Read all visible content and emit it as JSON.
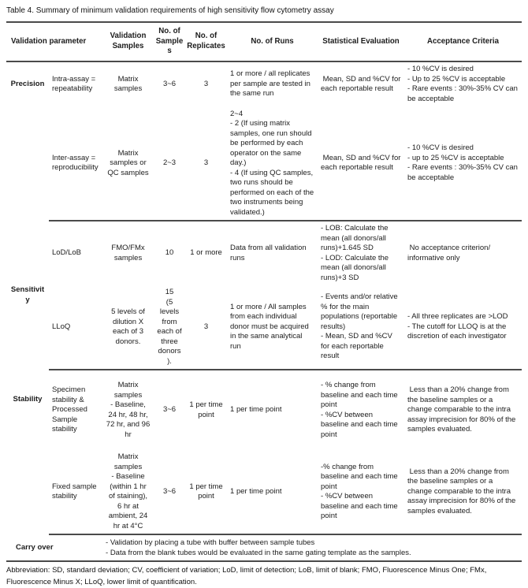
{
  "title": "Table 4. Summary of minimum validation requirements of high sensitivity flow cytometry assay",
  "header": {
    "validation_parameter": "Validation parameter",
    "validation_samples": "Validation Samples",
    "no_of_samples": "No. of Samples",
    "no_of_replicates": "No. of Replicates",
    "no_of_runs": "No. of Runs",
    "statistical_evaluation": "Statistical Evaluation",
    "acceptance_criteria": "Acceptance Criteria"
  },
  "sections": [
    {
      "category": "Precision",
      "rows": [
        {
          "parameter": "Intra-assay = repeatability",
          "samples": "Matrix samples",
          "n_samples": "3~6",
          "n_replicates": "3",
          "runs": "1 or more / all replicates per sample are tested in the same run",
          "statistical": " Mean, SD and %CV for each reportable result",
          "acceptance": "- 10 %CV is desired\n- Up to 25 %CV is acceptable\n- Rare events : 30%-35% CV can be acceptable"
        },
        {
          "parameter": "Inter-assay = reproducibility",
          "samples": "Matrix samples or QC samples",
          "n_samples": "2~3",
          "n_replicates": "3",
          "runs": "2~4\n- 2 (If using matrix samples, one run should be performed by each operator on the same day.)\n- 4 (If using QC samples, two runs should be performed on each of the two instruments being validated.)",
          "statistical": " Mean, SD and %CV for each reportable result",
          "acceptance": "- 10 %CV is desired\n- up to 25 %CV is acceptable\n- Rare events : 30%-35% CV can be acceptable"
        }
      ]
    },
    {
      "category": "Sensitivity",
      "rows": [
        {
          "parameter": "LoD/LoB",
          "samples": "FMO/FMx samples",
          "n_samples": "10",
          "n_replicates": "1 or more",
          "runs": "Data from all validation runs",
          "statistical": "- LOB: Calculate the mean (all donors/all runs)+1.645 SD\n- LOD: Calculate the mean (all donors/all runs)+3 SD",
          "acceptance": " No acceptance criterion/ informative only"
        },
        {
          "parameter": "LLoQ",
          "samples": "5 levels of dilution X each of 3 donors.",
          "n_samples": "15\n(5 levels from each of three donors).",
          "n_replicates": "3",
          "runs": "1 or more /  All samples from each individual donor must be acquired in the same analytical run",
          "statistical": "- Events and/or relative % for the main populations (reportable results)\n- Mean, SD and %CV for each reportable result",
          "acceptance": "- All three replicates are >LOD\n- The cutoff for LLOQ is at the discretion of each investigator"
        }
      ]
    },
    {
      "category": "Stability",
      "rows": [
        {
          "parameter": "Specimen stability & Processed Sample stability",
          "samples": "Matrix samples\n- Baseline, 24 hr, 48 hr, 72 hr, and 96 hr",
          "n_samples": "3~6",
          "n_replicates": "1 per time point",
          "runs": "1 per time point",
          "statistical": "- % change from baseline and each time point\n- %CV between baseline and each time point",
          "acceptance": " Less than a 20% change from the baseline samples or a change comparable to the intra assay imprecision for 80% of the samples evaluated."
        },
        {
          "parameter": "Fixed sample stability",
          "samples": "Matrix samples\n- Baseline (within 1 hr of staining), 6 hr at ambient, 24 hr at 4°C",
          "n_samples": "3~6",
          "n_replicates": "1 per time point",
          "runs": "1 per time point",
          "statistical": "-% change from baseline and each time point\n- %CV between baseline and each time point",
          "acceptance": " Less than a 20% change from the baseline samples or a change comparable to the intra assay imprecision for 80% of the samples evaluated."
        }
      ]
    }
  ],
  "carry_over": {
    "label": "Carry over",
    "text": "- Validation by placing a tube with buffer between sample tubes\n- Data from the blank tubes would be evaluated in the same gating template as the samples."
  },
  "footnote": "Abbreviation: SD, standard deviation; CV, coefficient of variation; LoD, limit of detection; LoB, limit of blank; FMO, Fluorescence Minus One; FMx, Fluorescence Minus X; LLoQ, lower limit of quantification."
}
